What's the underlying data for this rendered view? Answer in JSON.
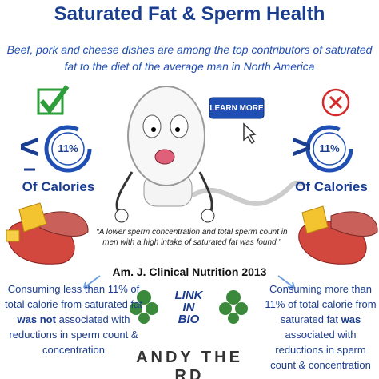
{
  "header": {
    "title": "Saturated Fat & Sperm Health",
    "subtitle": "Beef, pork and cheese dishes are among the top contributors of saturated fat to the diet of the average man in North America"
  },
  "button": {
    "label": "LEARN MORE"
  },
  "left": {
    "symbol": "<",
    "percent": "11%",
    "caption": "Of Calories",
    "text": {
      "before": "Consuming less than 11% of total calorie from saturated fat",
      "bold": "was not",
      "after": "associated with reductions in sperm count & concentration"
    }
  },
  "right": {
    "symbol": ">",
    "percent": "11%",
    "caption": "Of Calories",
    "text": {
      "before": "Consuming more than 11% of total calorie from saturated fat",
      "bold": "was",
      "after": "associated with reductions in sperm count & concentration"
    }
  },
  "quote": {
    "text": "“A lower sperm concentration and total sperm count in men with a high intake of saturated fat was found.”",
    "citation": "Am. J. Clinical Nutrition 2013"
  },
  "brand": {
    "logo_lines": [
      "LINK",
      "IN",
      "BIO"
    ],
    "name": "ANDY THE RD"
  }
}
